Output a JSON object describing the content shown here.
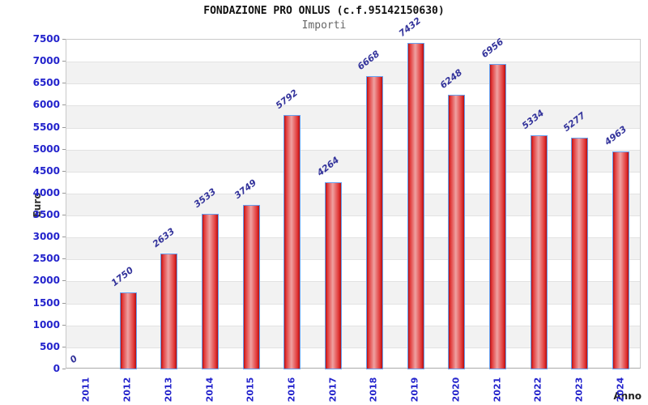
{
  "chart_data": {
    "type": "bar",
    "title": "FONDAZIONE PRO ONLUS (c.f.95142150630)",
    "subtitle": "Importi",
    "xlabel": "Anno",
    "ylabel": "Euro",
    "categories": [
      "2011",
      "2012",
      "2013",
      "2014",
      "2015",
      "2016",
      "2017",
      "2018",
      "2019",
      "2020",
      "2021",
      "2022",
      "2023",
      "2024"
    ],
    "values": [
      0,
      1750,
      2633,
      3533,
      3749,
      5792,
      4264,
      6668,
      7432,
      6248,
      6956,
      5334,
      5277,
      4963
    ],
    "ylim": [
      0,
      7500
    ],
    "ytick_step": 500,
    "legend": "none",
    "grid": "alternating-horizontal-bands",
    "value_labels_shown": true,
    "colors": {
      "bar_fill": "#e03333",
      "bar_border": "#66a0f0",
      "axis_tick_label": "#2323cc",
      "value_label": "#33339b",
      "band_alt": "#f2f2f2",
      "plot_border": "#c9c9c9",
      "title": "#111111",
      "subtitle": "#666666"
    }
  }
}
